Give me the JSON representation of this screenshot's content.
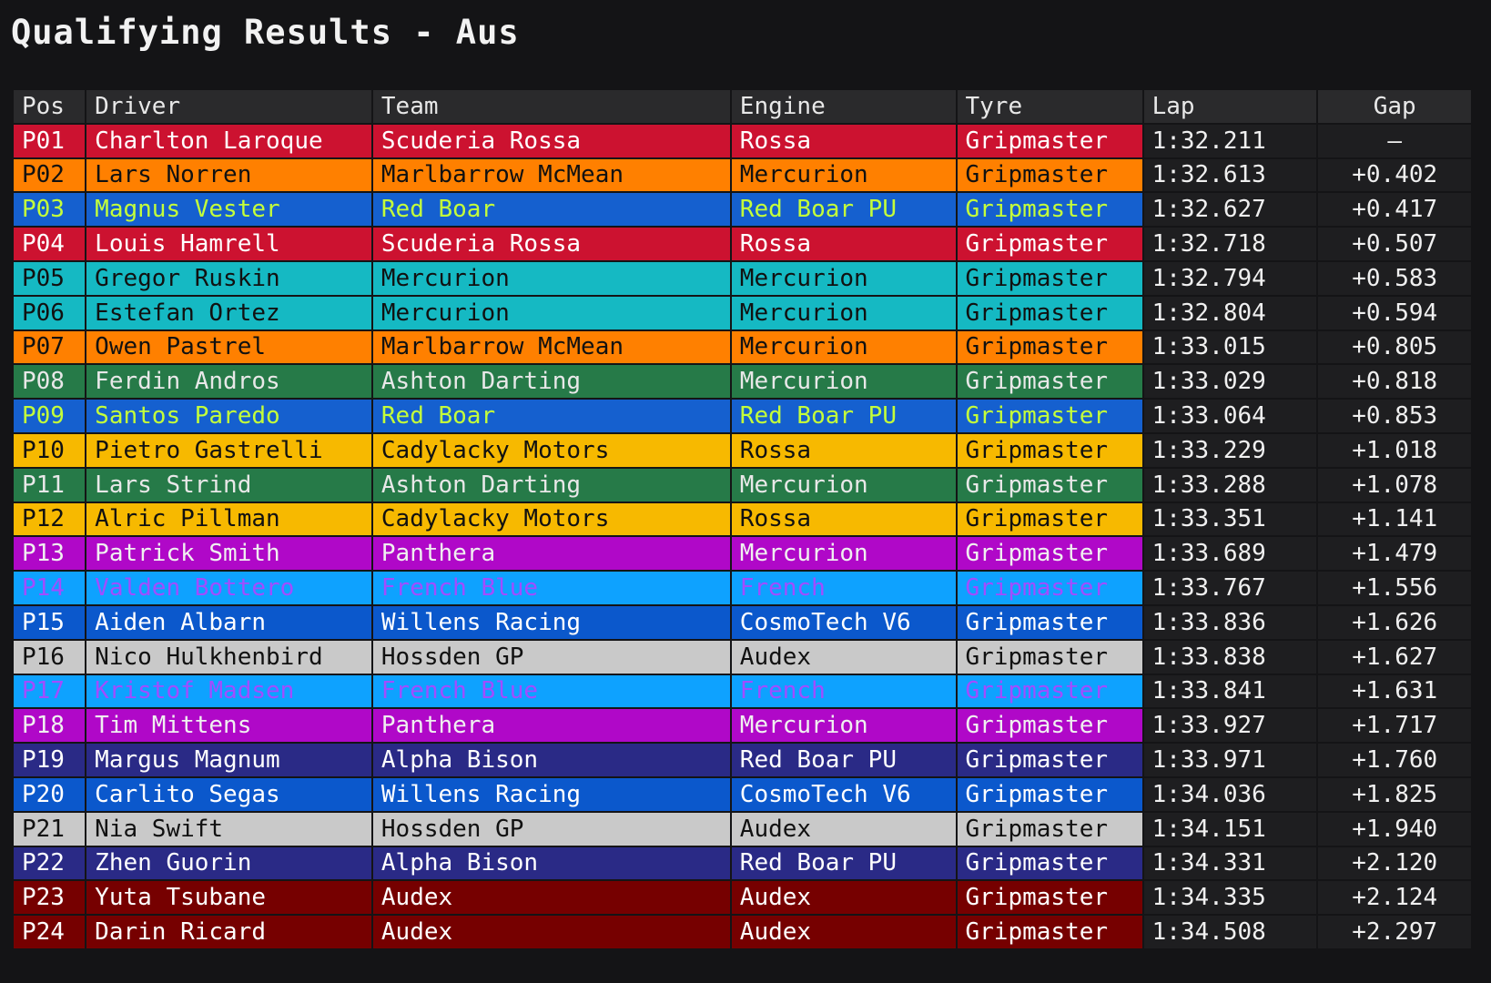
{
  "header": {
    "title": "Qualifying Results - Aus"
  },
  "table": {
    "columns": [
      "Pos",
      "Driver",
      "Team",
      "Engine",
      "Tyre",
      "Lap",
      "Gap"
    ],
    "rows": [
      {
        "color": "#cc1230",
        "text_color": "#ffffff",
        "cells": [
          "P01",
          "Charlton Laroque",
          "Scuderia Rossa",
          "Rossa",
          "Gripmaster",
          "1:32.211",
          "—"
        ]
      },
      {
        "color": "#ff8000",
        "text_color": "#111111",
        "cells": [
          "P02",
          "Lars Norren",
          "Marlbarrow McMean",
          "Mercurion",
          "Gripmaster",
          "1:32.613",
          "+0.402"
        ]
      },
      {
        "color": "#1560cf",
        "text_color": "#c4ff3a",
        "cells": [
          "P03",
          "Magnus Vester",
          "Red Boar",
          "Red Boar PU",
          "Gripmaster",
          "1:32.627",
          "+0.417"
        ]
      },
      {
        "color": "#cc1230",
        "text_color": "#ffffff",
        "cells": [
          "P04",
          "Louis Hamrell",
          "Scuderia Rossa",
          "Rossa",
          "Gripmaster",
          "1:32.718",
          "+0.507"
        ]
      },
      {
        "color": "#15b9c3",
        "text_color": "#111111",
        "cells": [
          "P05",
          "Gregor Ruskin",
          "Mercurion",
          "Mercurion",
          "Gripmaster",
          "1:32.794",
          "+0.583"
        ]
      },
      {
        "color": "#15b9c3",
        "text_color": "#111111",
        "cells": [
          "P06",
          "Estefan Ortez",
          "Mercurion",
          "Mercurion",
          "Gripmaster",
          "1:32.804",
          "+0.594"
        ]
      },
      {
        "color": "#ff8000",
        "text_color": "#111111",
        "cells": [
          "P07",
          "Owen Pastrel",
          "Marlbarrow McMean",
          "Mercurion",
          "Gripmaster",
          "1:33.015",
          "+0.805"
        ]
      },
      {
        "color": "#267a48",
        "text_color": "#e8e8e8",
        "cells": [
          "P08",
          "Ferdin Andros",
          "Ashton Darting",
          "Mercurion",
          "Gripmaster",
          "1:33.029",
          "+0.818"
        ]
      },
      {
        "color": "#1560cf",
        "text_color": "#c4ff3a",
        "cells": [
          "P09",
          "Santos Paredo",
          "Red Boar",
          "Red Boar PU",
          "Gripmaster",
          "1:33.064",
          "+0.853"
        ]
      },
      {
        "color": "#f7b900",
        "text_color": "#111111",
        "cells": [
          "P10",
          "Pietro Gastrelli",
          "Cadylacky Motors",
          "Rossa",
          "Gripmaster",
          "1:33.229",
          "+1.018"
        ]
      },
      {
        "color": "#267a48",
        "text_color": "#e8e8e8",
        "cells": [
          "P11",
          "Lars Strind",
          "Ashton Darting",
          "Mercurion",
          "Gripmaster",
          "1:33.288",
          "+1.078"
        ]
      },
      {
        "color": "#f7b900",
        "text_color": "#111111",
        "cells": [
          "P12",
          "Alric Pillman",
          "Cadylacky Motors",
          "Rossa",
          "Gripmaster",
          "1:33.351",
          "+1.141"
        ]
      },
      {
        "color": "#b008c8",
        "text_color": "#f0f0f0",
        "cells": [
          "P13",
          "Patrick Smith",
          "Panthera",
          "Mercurion",
          "Gripmaster",
          "1:33.689",
          "+1.479"
        ]
      },
      {
        "color": "#0ea2ff",
        "text_color": "#a24cff",
        "cells": [
          "P14",
          "Valden Bottero",
          "French Blue",
          "French",
          "Gripmaster",
          "1:33.767",
          "+1.556"
        ]
      },
      {
        "color": "#0b58cc",
        "text_color": "#ffffff",
        "cells": [
          "P15",
          "Aiden Albarn",
          "Willens Racing",
          "CosmoTech V6",
          "Gripmaster",
          "1:33.836",
          "+1.626"
        ]
      },
      {
        "color": "#c9c9c9",
        "text_color": "#111111",
        "cells": [
          "P16",
          "Nico Hulkhenbird",
          "Hossden GP",
          "Audex",
          "Gripmaster",
          "1:33.838",
          "+1.627"
        ]
      },
      {
        "color": "#0ea2ff",
        "text_color": "#a24cff",
        "cells": [
          "P17",
          "Kristof Madsen",
          "French Blue",
          "French",
          "Gripmaster",
          "1:33.841",
          "+1.631"
        ]
      },
      {
        "color": "#b008c8",
        "text_color": "#f0f0f0",
        "cells": [
          "P18",
          "Tim Mittens",
          "Panthera",
          "Mercurion",
          "Gripmaster",
          "1:33.927",
          "+1.717"
        ]
      },
      {
        "color": "#2a2a86",
        "text_color": "#ffffff",
        "cells": [
          "P19",
          "Margus Magnum",
          "Alpha Bison",
          "Red Boar PU",
          "Gripmaster",
          "1:33.971",
          "+1.760"
        ]
      },
      {
        "color": "#0b58cc",
        "text_color": "#ffffff",
        "cells": [
          "P20",
          "Carlito Segas",
          "Willens Racing",
          "CosmoTech V6",
          "Gripmaster",
          "1:34.036",
          "+1.825"
        ]
      },
      {
        "color": "#c9c9c9",
        "text_color": "#111111",
        "cells": [
          "P21",
          "Nia Swift",
          "Hossden GP",
          "Audex",
          "Gripmaster",
          "1:34.151",
          "+1.940"
        ]
      },
      {
        "color": "#2a2a86",
        "text_color": "#ffffff",
        "cells": [
          "P22",
          "Zhen Guorin",
          "Alpha Bison",
          "Red Boar PU",
          "Gripmaster",
          "1:34.331",
          "+2.120"
        ]
      },
      {
        "color": "#760000",
        "text_color": "#ffffff",
        "cells": [
          "P23",
          "Yuta Tsubane",
          "Audex",
          "Audex",
          "Gripmaster",
          "1:34.335",
          "+2.124"
        ]
      },
      {
        "color": "#760000",
        "text_color": "#ffffff",
        "cells": [
          "P24",
          "Darin Ricard",
          "Audex",
          "Audex",
          "Gripmaster",
          "1:34.508",
          "+2.297"
        ]
      }
    ]
  }
}
